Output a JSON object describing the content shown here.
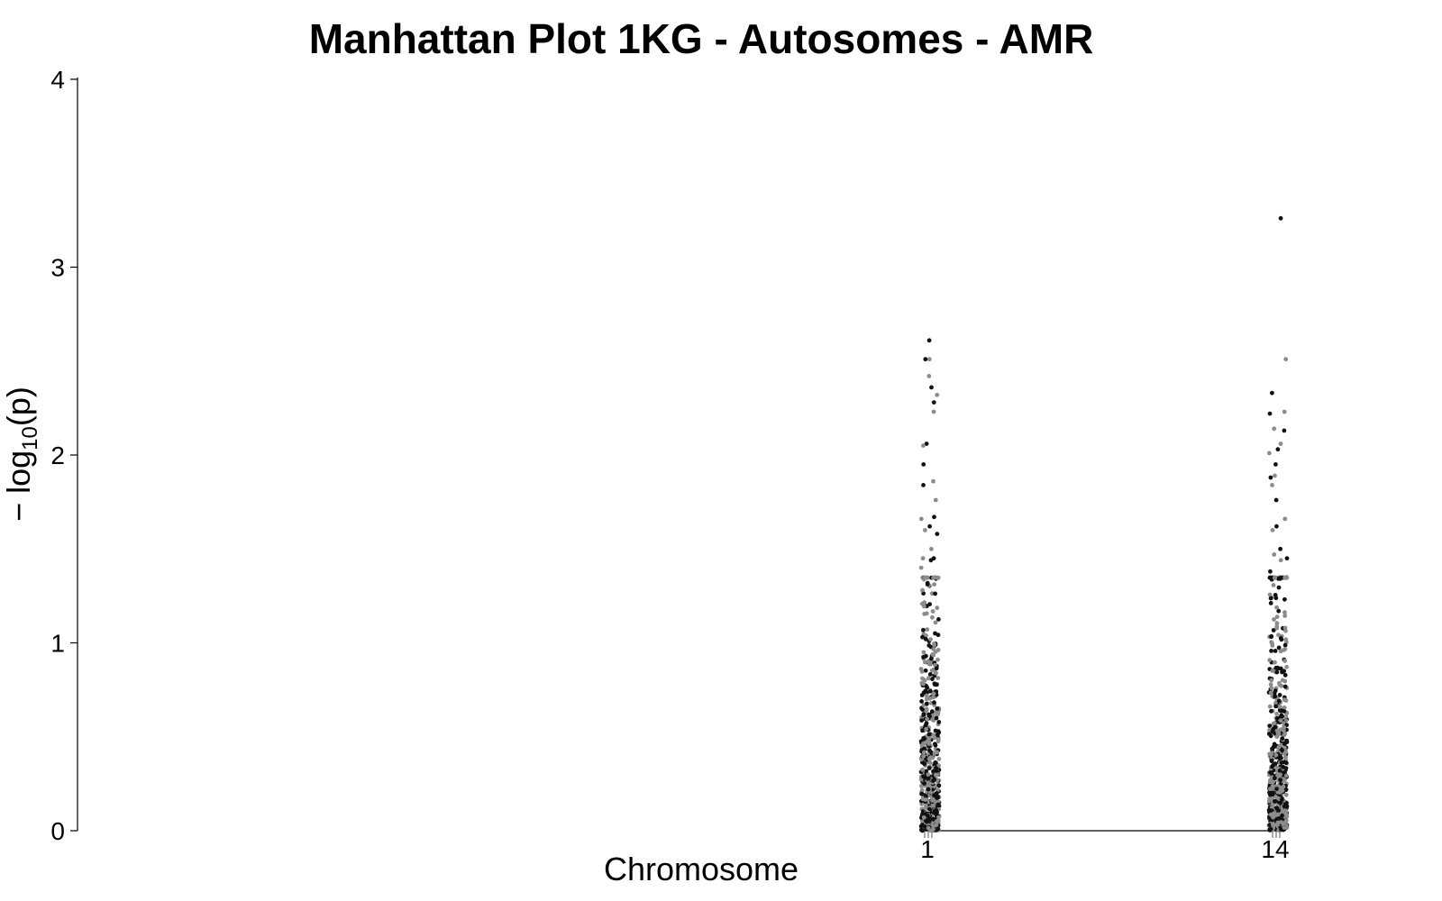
{
  "chart_data": {
    "type": "scatter",
    "title": "Manhattan Plot 1KG - Autosomes - AMR",
    "xlabel": "Chromosome",
    "ylabel": "−log10(p)",
    "ylabel_parts": {
      "prefix": "− log",
      "subscript": "10",
      "suffix": "(p)"
    },
    "ylim": [
      0,
      4
    ],
    "yticks": [
      0,
      1,
      2,
      3,
      4
    ],
    "grid": false,
    "legend": "none",
    "colors": {
      "odd": "#111111",
      "even": "#8c8c8c"
    },
    "chromosomes": [
      {
        "label": "1",
        "count": 620,
        "top_points": [
          2.61,
          2.51,
          2.51,
          2.42,
          2.36,
          2.32,
          2.28,
          2.23,
          2.06,
          2.05,
          1.95,
          1.86,
          1.84,
          1.76,
          1.67,
          1.66,
          1.62,
          1.6,
          1.58,
          1.5,
          1.45,
          1.45,
          1.44,
          1.4
        ]
      },
      {
        "label": "14",
        "count": 560,
        "top_points": [
          3.26,
          2.51,
          2.33,
          2.23,
          2.22,
          2.14,
          2.13,
          2.06,
          2.03,
          2.01,
          1.95,
          1.89,
          1.88,
          1.84,
          1.76,
          1.66,
          1.62,
          1.6,
          1.5,
          1.47,
          1.45,
          1.44,
          1.38,
          1.35
        ]
      }
    ]
  }
}
